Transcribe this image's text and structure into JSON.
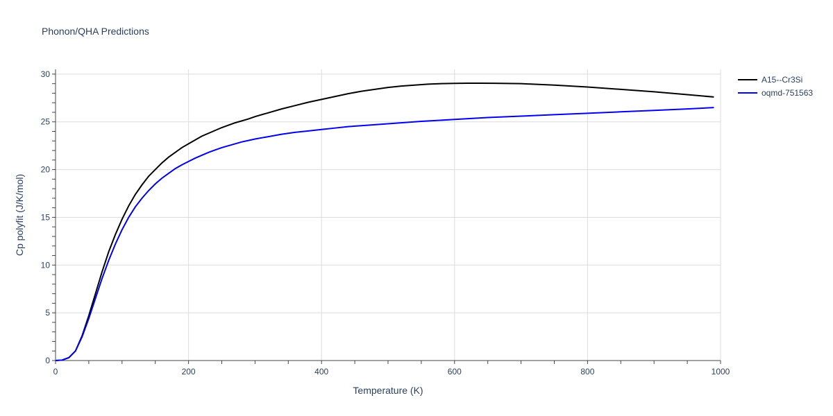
{
  "chart_data": {
    "type": "line",
    "title": "Phonon/QHA Predictions",
    "xlabel": "Temperature (K)",
    "ylabel": "Cp polyfit (J/K/mol)",
    "xlim": [
      0,
      1000
    ],
    "ylim": [
      0,
      30.5
    ],
    "xticks": [
      0,
      200,
      400,
      600,
      800,
      1000
    ],
    "yticks": [
      0,
      5,
      10,
      15,
      20,
      25,
      30
    ],
    "grid": true,
    "legend_position": "top-right",
    "series": [
      {
        "name": "A15--Cr3Si",
        "color": "#000000",
        "x": [
          0,
          10,
          20,
          30,
          40,
          50,
          60,
          70,
          80,
          90,
          100,
          110,
          120,
          130,
          140,
          150,
          160,
          170,
          180,
          190,
          200,
          210,
          220,
          230,
          240,
          250,
          260,
          270,
          280,
          290,
          300,
          320,
          340,
          360,
          380,
          400,
          420,
          440,
          460,
          480,
          500,
          520,
          540,
          560,
          580,
          600,
          620,
          640,
          660,
          680,
          700,
          750,
          800,
          850,
          900,
          950,
          990
        ],
        "y": [
          0,
          0.05,
          0.3,
          1.0,
          2.6,
          4.7,
          7.0,
          9.3,
          11.4,
          13.2,
          14.8,
          16.2,
          17.4,
          18.4,
          19.3,
          20.0,
          20.7,
          21.3,
          21.8,
          22.3,
          22.7,
          23.1,
          23.5,
          23.8,
          24.1,
          24.4,
          24.65,
          24.9,
          25.1,
          25.3,
          25.55,
          25.95,
          26.35,
          26.7,
          27.05,
          27.35,
          27.65,
          27.95,
          28.2,
          28.4,
          28.6,
          28.75,
          28.85,
          28.95,
          29.0,
          29.03,
          29.05,
          29.05,
          29.04,
          29.02,
          29.0,
          28.85,
          28.65,
          28.4,
          28.15,
          27.85,
          27.6
        ]
      },
      {
        "name": "oqmd-751563",
        "color": "#0000ee",
        "x": [
          0,
          10,
          20,
          30,
          40,
          50,
          60,
          70,
          80,
          90,
          100,
          110,
          120,
          130,
          140,
          150,
          160,
          170,
          180,
          190,
          200,
          210,
          220,
          230,
          240,
          250,
          260,
          270,
          280,
          290,
          300,
          320,
          340,
          360,
          380,
          400,
          420,
          440,
          460,
          480,
          500,
          550,
          600,
          650,
          700,
          750,
          800,
          850,
          900,
          950,
          990
        ],
        "y": [
          0,
          0.05,
          0.3,
          1.0,
          2.5,
          4.4,
          6.5,
          8.6,
          10.5,
          12.2,
          13.7,
          15.0,
          16.1,
          17.0,
          17.8,
          18.5,
          19.1,
          19.6,
          20.1,
          20.5,
          20.85,
          21.2,
          21.5,
          21.8,
          22.05,
          22.3,
          22.5,
          22.7,
          22.9,
          23.05,
          23.2,
          23.45,
          23.7,
          23.9,
          24.05,
          24.2,
          24.35,
          24.5,
          24.6,
          24.7,
          24.8,
          25.05,
          25.25,
          25.45,
          25.6,
          25.75,
          25.9,
          26.05,
          26.2,
          26.35,
          26.5
        ]
      }
    ]
  }
}
